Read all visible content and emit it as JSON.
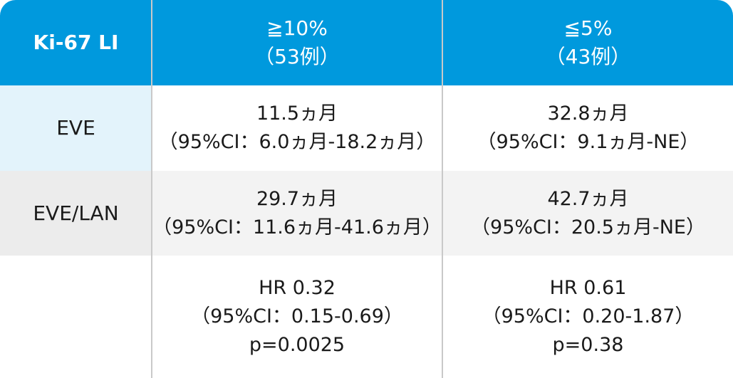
{
  "header": {
    "label": "Ki-67 LI",
    "col1_line1": "≧10%",
    "col1_line2": "（53例）",
    "col2_line1": "≦5%",
    "col2_line2": "（43例）"
  },
  "rows": [
    {
      "label": "EVE",
      "col1_line1": "11.5ヵ月",
      "col1_line2": "（95%CI：6.0ヵ月-18.2ヵ月）",
      "col2_line1": "32.8ヵ月",
      "col2_line2": "（95%CI：9.1ヵ月-NE）"
    },
    {
      "label": "EVE/LAN",
      "col1_line1": "29.7ヵ月",
      "col1_line2": "（95%CI：11.6ヵ月-41.6ヵ月）",
      "col2_line1": "42.7ヵ月",
      "col2_line2": "（95%CI：20.5ヵ月-NE）"
    }
  ],
  "hr_row": {
    "label": "",
    "col1_line1": "HR 0.32",
    "col1_line2": "（95%CI：0.15-0.69）",
    "col1_line3": "p=0.0025",
    "col2_line1": "HR 0.61",
    "col2_line2": "（95%CI：0.20-1.87）",
    "col2_line3": "p=0.38"
  },
  "colors": {
    "header_bg": "#0099dd",
    "row1_label_bg": "#e3f3fb",
    "row2_bg": "#f3f3f3",
    "divider": "#c9c9c9"
  }
}
